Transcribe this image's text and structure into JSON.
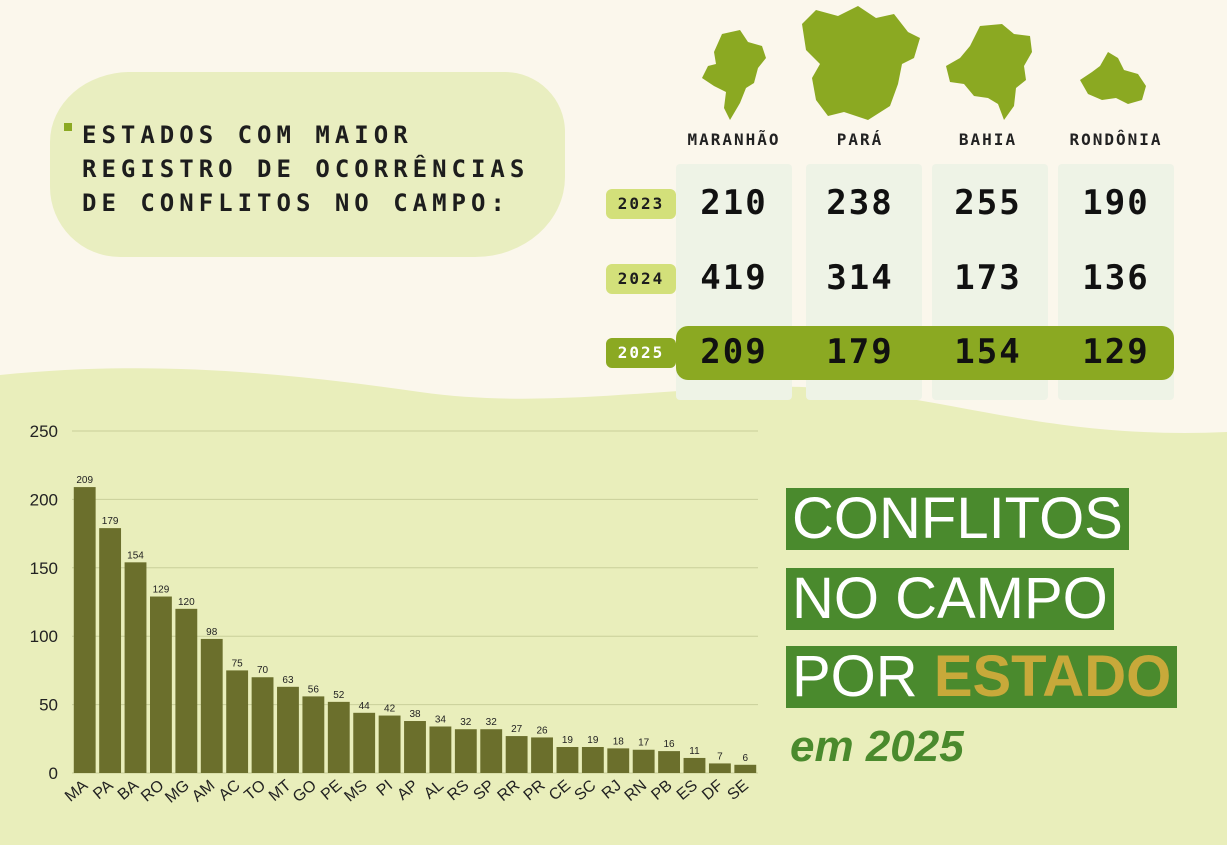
{
  "header": {
    "title": "ESTADOS COM MAIOR REGISTRO DE OCORRÊNCIAS DE CONFLITOS NO CAMPO:"
  },
  "table": {
    "states": [
      "MARANHÃO",
      "PARÁ",
      "BAHIA",
      "RONDÔNIA"
    ],
    "years": [
      "2023",
      "2024",
      "2025"
    ],
    "rows": [
      [
        "210",
        "238",
        "255",
        "190"
      ],
      [
        "419",
        "314",
        "173",
        "136"
      ],
      [
        "209",
        "179",
        "154",
        "129"
      ]
    ],
    "colors": {
      "highlight": "#8ba922",
      "tag_light": "#d3e07a",
      "tag_dark": "#8ba922"
    }
  },
  "title": {
    "line1": "CONFLITOS",
    "line2": "NO CAMPO",
    "line3_prefix": "POR ",
    "line3_accent": "ESTADO",
    "subtitle": "em 2025",
    "colors": {
      "box": "#4a8a2d",
      "accent": "#c8a93a"
    }
  },
  "chart_data": {
    "type": "bar",
    "categories": [
      "MA",
      "PA",
      "BA",
      "RO",
      "MG",
      "AM",
      "AC",
      "TO",
      "MT",
      "GO",
      "PE",
      "MS",
      "PI",
      "AP",
      "AL",
      "RS",
      "SP",
      "RR",
      "PR",
      "CE",
      "SC",
      "RJ",
      "RN",
      "PB",
      "ES",
      "DF",
      "SE"
    ],
    "values": [
      209,
      179,
      154,
      129,
      120,
      98,
      75,
      70,
      63,
      56,
      52,
      44,
      42,
      38,
      34,
      32,
      32,
      27,
      26,
      19,
      19,
      18,
      17,
      16,
      11,
      7,
      6
    ],
    "ylim": [
      0,
      250
    ],
    "yticks": [
      0,
      50,
      100,
      150,
      200,
      250
    ],
    "grid": true,
    "bar_color": "#6b6f2c"
  }
}
